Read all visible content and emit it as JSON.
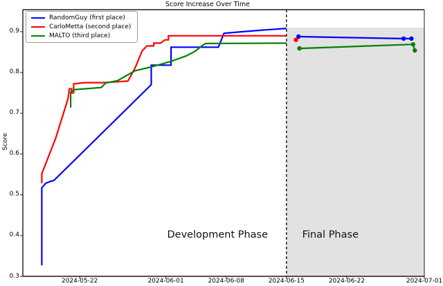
{
  "title": "Score Increase Over Time",
  "ylabel": "Score",
  "phase_labels": {
    "development": "Development Phase",
    "final": "Final Phase"
  },
  "legend": [
    {
      "label": "RandomGuy (first place)",
      "color": "#0000ff"
    },
    {
      "label": "CarloMetta (second place)",
      "color": "#ff0000"
    },
    {
      "label": "MALTO (third place)",
      "color": "#008000"
    }
  ],
  "colors": {
    "final_phase_bg": "#e2e2e2",
    "divider": "#000000",
    "spine": "#1a1a1a",
    "blue": "#0000ff",
    "red": "#ff0000",
    "green": "#008000"
  },
  "chart_data": {
    "type": "line",
    "title": "Score Increase Over Time",
    "xlabel": "",
    "ylabel": "Score",
    "x_unit": "days since 2024-05-22",
    "xlim": [
      -6.6,
      40
    ],
    "ylim": [
      0.3,
      0.954
    ],
    "grid": false,
    "legend_position": "upper left",
    "x_ticks": [
      {
        "label": "2024-05-22",
        "day": 0
      },
      {
        "label": "2024-06-01",
        "day": 10
      },
      {
        "label": "2024-06-08",
        "day": 17
      },
      {
        "label": "2024-06-15",
        "day": 24
      },
      {
        "label": "2024-06-22",
        "day": 31
      },
      {
        "label": "2024-07-01",
        "day": 40
      }
    ],
    "y_ticks": [
      0.3,
      0.4,
      0.5,
      0.6,
      0.7,
      0.8,
      0.9
    ],
    "phase_divider": {
      "day": 24,
      "date": "2024-06-15",
      "style": "dashed"
    },
    "final_phase_span": {
      "from_day": 24,
      "to_day": 40,
      "top_score": 0.91
    },
    "series": [
      {
        "name": "RandomGuy (first place)",
        "color": "#0000ff",
        "development": [
          [
            -4.4,
            0.327
          ],
          [
            -4.4,
            0.517
          ],
          [
            -3.95,
            0.528
          ],
          [
            -3.4,
            0.533
          ],
          [
            -3.0,
            0.535
          ],
          [
            8.3,
            0.77
          ],
          [
            8.3,
            0.818
          ],
          [
            10.6,
            0.818
          ],
          [
            10.6,
            0.862
          ],
          [
            16.1,
            0.862
          ],
          [
            16.75,
            0.896
          ],
          [
            18.9,
            0.9
          ],
          [
            21.3,
            0.904
          ],
          [
            24,
            0.908
          ]
        ],
        "final": [
          [
            25.4,
            0.888
          ],
          [
            37.6,
            0.883
          ],
          [
            38.5,
            0.883
          ]
        ]
      },
      {
        "name": "CarloMetta (second place)",
        "color": "#ff0000",
        "development": [
          [
            -4.4,
            0.528
          ],
          [
            -4.4,
            0.552
          ],
          [
            -2.8,
            0.638
          ],
          [
            -1.35,
            0.736
          ],
          [
            -1.2,
            0.76
          ],
          [
            -0.95,
            0.76
          ],
          [
            -0.95,
            0.75
          ],
          [
            -0.7,
            0.75
          ],
          [
            -0.7,
            0.772
          ],
          [
            0.55,
            0.775
          ],
          [
            2.8,
            0.775
          ],
          [
            5.6,
            0.779
          ],
          [
            6.45,
            0.812
          ],
          [
            7.25,
            0.853
          ],
          [
            7.8,
            0.865
          ],
          [
            8.6,
            0.865
          ],
          [
            8.6,
            0.872
          ],
          [
            9.4,
            0.872
          ],
          [
            9.9,
            0.88
          ],
          [
            10.3,
            0.88
          ],
          [
            10.3,
            0.89
          ],
          [
            24,
            0.89
          ]
        ],
        "final": [
          [
            25.1,
            0.88
          ]
        ]
      },
      {
        "name": "MALTO (third place)",
        "color": "#008000",
        "development": [
          [
            -1.05,
            0.714
          ],
          [
            -1.05,
            0.752
          ],
          [
            -0.6,
            0.758
          ],
          [
            2.5,
            0.763
          ],
          [
            3.0,
            0.774
          ],
          [
            4.4,
            0.78
          ],
          [
            6.4,
            0.804
          ],
          [
            8.4,
            0.814
          ],
          [
            10.7,
            0.828
          ],
          [
            12.4,
            0.841
          ],
          [
            13.4,
            0.852
          ],
          [
            14.1,
            0.864
          ],
          [
            14.6,
            0.871
          ],
          [
            24,
            0.872
          ]
        ],
        "final": [
          [
            25.5,
            0.859
          ],
          [
            38.7,
            0.869
          ],
          [
            38.9,
            0.854
          ]
        ]
      }
    ],
    "annotations": [
      {
        "text": "Development Phase",
        "day": 16.0,
        "score": 0.402
      },
      {
        "text": "Final Phase",
        "day": 29.1,
        "score": 0.402
      }
    ]
  }
}
